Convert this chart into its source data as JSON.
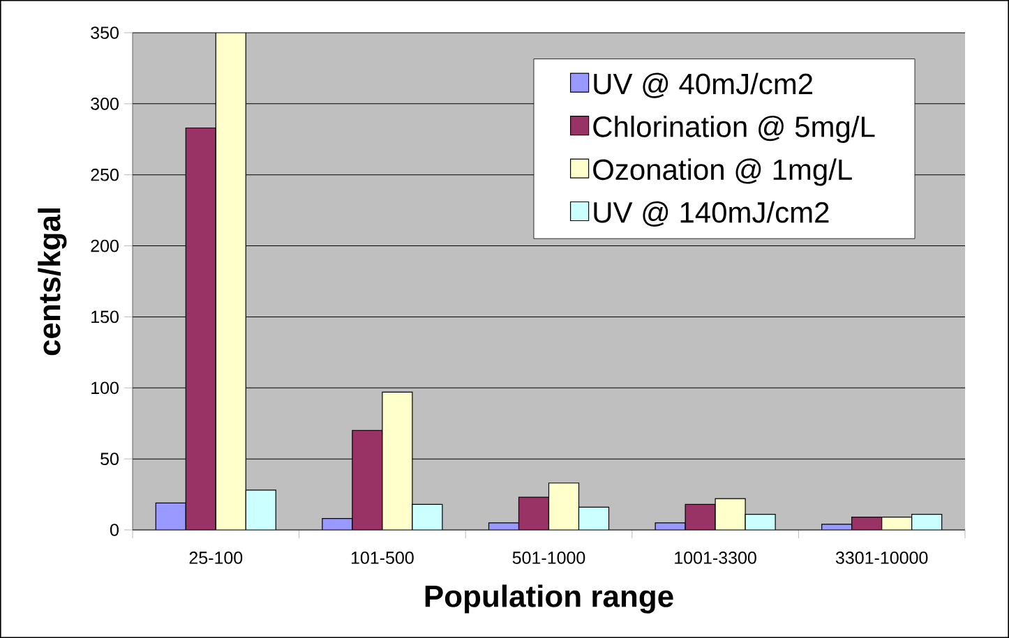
{
  "chart_data": {
    "type": "bar",
    "xlabel": "Population range",
    "ylabel": "cents/kgal",
    "categories": [
      "25-100",
      "101-500",
      "501-1000",
      "1001-3300",
      "3301-10000"
    ],
    "series": [
      {
        "name": "UV @ 40mJ/cm2",
        "color": "#9999ff",
        "values": [
          19,
          8,
          5,
          5,
          4
        ]
      },
      {
        "name": "Chlorination @ 5mg/L",
        "color": "#993366",
        "values": [
          283,
          70,
          23,
          18,
          9
        ]
      },
      {
        "name": "Ozonation @ 1mg/L",
        "color": "#ffffcc",
        "values": [
          350,
          97,
          33,
          22,
          9
        ]
      },
      {
        "name": "UV @ 140mJ/cm2",
        "color": "#ccffff",
        "values": [
          28,
          18,
          16,
          11,
          11
        ]
      }
    ],
    "ylim": [
      0,
      350
    ],
    "yticks": [
      0,
      50,
      100,
      150,
      200,
      250,
      300,
      350
    ],
    "grid": "y",
    "legend": "top right"
  }
}
